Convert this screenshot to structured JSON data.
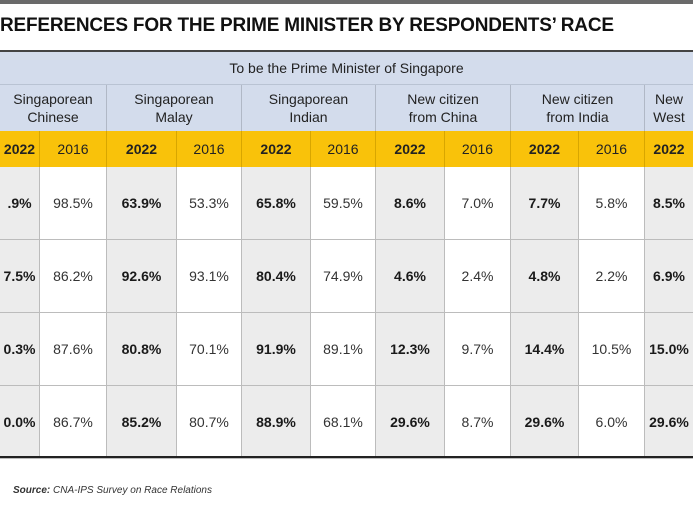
{
  "title": "REFERENCES FOR THE PRIME MINISTER BY RESPONDENTS’ RACE",
  "table": {
    "super_header": "To be the Prime Minister of Singapore",
    "groups": [
      {
        "line1": "Singaporean",
        "line2": "Chinese"
      },
      {
        "line1": "Singaporean",
        "line2": "Malay"
      },
      {
        "line1": "Singaporean",
        "line2": "Indian"
      },
      {
        "line1": "New citizen",
        "line2": "from China"
      },
      {
        "line1": "New citizen",
        "line2": "from India"
      },
      {
        "line1": "New",
        "line2": "West"
      }
    ],
    "years": [
      "2022",
      "2016"
    ],
    "rows": [
      [
        ".9%",
        "98.5%",
        "63.9%",
        "53.3%",
        "65.8%",
        "59.5%",
        "8.6%",
        "7.0%",
        "7.7%",
        "5.8%",
        "8.5%"
      ],
      [
        "7.5%",
        "86.2%",
        "92.6%",
        "93.1%",
        "80.4%",
        "74.9%",
        "4.6%",
        "2.4%",
        "4.8%",
        "2.2%",
        "6.9%"
      ],
      [
        "0.3%",
        "87.6%",
        "80.8%",
        "70.1%",
        "91.9%",
        "89.1%",
        "12.3%",
        "9.7%",
        "14.4%",
        "10.5%",
        "15.0%"
      ],
      [
        "0.0%",
        "86.7%",
        "85.2%",
        "80.7%",
        "88.9%",
        "68.1%",
        "29.6%",
        "8.7%",
        "29.6%",
        "6.0%",
        "29.6%"
      ]
    ]
  },
  "source": {
    "label": "Source:",
    "text": "CNA-IPS Survey on Race Relations"
  },
  "colors": {
    "header_blue": "#d3dcec",
    "year_yellow": "#f9c20a",
    "bold_cell_grey": "#ececec"
  }
}
